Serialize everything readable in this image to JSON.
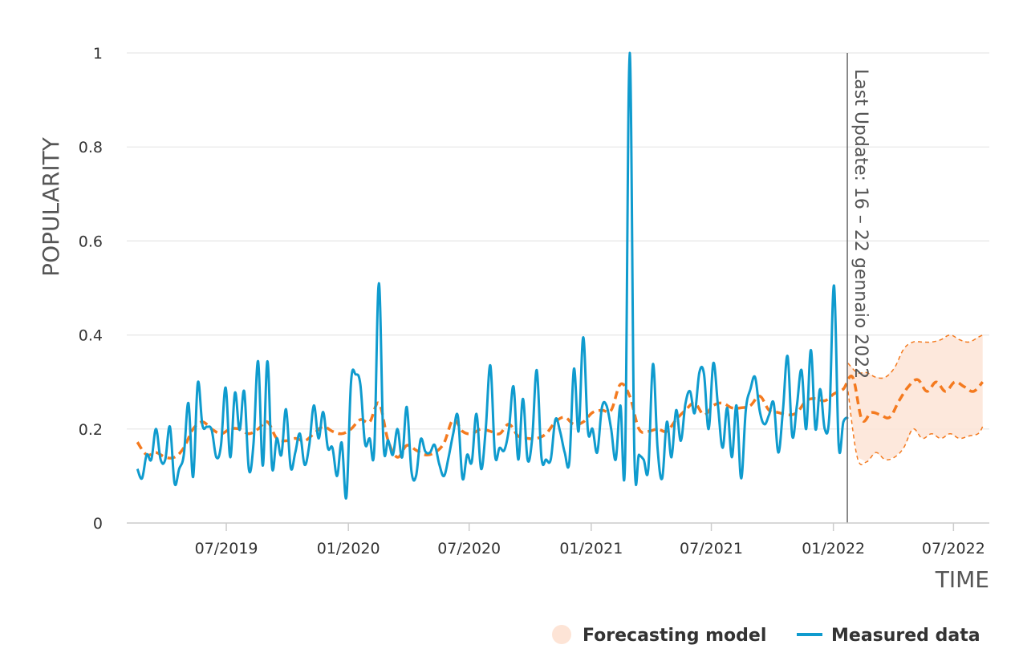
{
  "chart_data": {
    "type": "line",
    "title": "",
    "xlabel": "TIME",
    "ylabel": "POPULARITY",
    "x_type": "date",
    "xlim": [
      "2019-02-01",
      "2022-08-24"
    ],
    "ylim": [
      0,
      1
    ],
    "grid": true,
    "legend_position": "bottom-right",
    "y_ticks": [
      "0",
      "0.2",
      "0.4",
      "0.6",
      "0.8",
      "1"
    ],
    "x_ticks": [
      {
        "date": "2019-07-01",
        "label": "07/2019"
      },
      {
        "date": "2020-01-01",
        "label": "01/2020"
      },
      {
        "date": "2020-07-01",
        "label": "07/2020"
      },
      {
        "date": "2021-01-01",
        "label": "01/2021"
      },
      {
        "date": "2021-07-01",
        "label": "07/2021"
      },
      {
        "date": "2022-01-01",
        "label": "01/2022"
      },
      {
        "date": "2022-07-01",
        "label": "07/2022"
      }
    ],
    "annotation": {
      "date": "2022-01-22",
      "label": "Last Update: 16 – 22 gennaio 2022"
    },
    "series": [
      {
        "name": "Measured data",
        "color": "#0f9bce",
        "points": [
          [
            "2019-02-17",
            0.115
          ],
          [
            "2019-02-24",
            0.095
          ],
          [
            "2019-03-03",
            0.145
          ],
          [
            "2019-03-10",
            0.135
          ],
          [
            "2019-03-17",
            0.2
          ],
          [
            "2019-03-24",
            0.135
          ],
          [
            "2019-03-31",
            0.135
          ],
          [
            "2019-04-07",
            0.205
          ],
          [
            "2019-04-14",
            0.085
          ],
          [
            "2019-04-21",
            0.115
          ],
          [
            "2019-04-28",
            0.145
          ],
          [
            "2019-05-05",
            0.255
          ],
          [
            "2019-05-12",
            0.098
          ],
          [
            "2019-05-19",
            0.298
          ],
          [
            "2019-05-26",
            0.208
          ],
          [
            "2019-06-02",
            0.205
          ],
          [
            "2019-06-09",
            0.198
          ],
          [
            "2019-06-16",
            0.14
          ],
          [
            "2019-06-23",
            0.165
          ],
          [
            "2019-06-30",
            0.288
          ],
          [
            "2019-07-07",
            0.14
          ],
          [
            "2019-07-14",
            0.277
          ],
          [
            "2019-07-21",
            0.198
          ],
          [
            "2019-07-28",
            0.28
          ],
          [
            "2019-08-04",
            0.114
          ],
          [
            "2019-08-11",
            0.168
          ],
          [
            "2019-08-18",
            0.344
          ],
          [
            "2019-08-25",
            0.122
          ],
          [
            "2019-09-01",
            0.344
          ],
          [
            "2019-09-08",
            0.118
          ],
          [
            "2019-09-15",
            0.18
          ],
          [
            "2019-09-22",
            0.145
          ],
          [
            "2019-09-29",
            0.242
          ],
          [
            "2019-10-06",
            0.118
          ],
          [
            "2019-10-13",
            0.15
          ],
          [
            "2019-10-20",
            0.19
          ],
          [
            "2019-10-27",
            0.124
          ],
          [
            "2019-11-03",
            0.165
          ],
          [
            "2019-11-10",
            0.25
          ],
          [
            "2019-11-17",
            0.18
          ],
          [
            "2019-11-24",
            0.236
          ],
          [
            "2019-12-01",
            0.16
          ],
          [
            "2019-12-08",
            0.16
          ],
          [
            "2019-12-15",
            0.1
          ],
          [
            "2019-12-22",
            0.171
          ],
          [
            "2019-12-29",
            0.055
          ],
          [
            "2020-01-05",
            0.3
          ],
          [
            "2020-01-12",
            0.316
          ],
          [
            "2020-01-19",
            0.295
          ],
          [
            "2020-01-26",
            0.17
          ],
          [
            "2020-02-02",
            0.18
          ],
          [
            "2020-02-09",
            0.155
          ],
          [
            "2020-02-16",
            0.51
          ],
          [
            "2020-02-23",
            0.166
          ],
          [
            "2020-03-01",
            0.176
          ],
          [
            "2020-03-08",
            0.145
          ],
          [
            "2020-03-15",
            0.2
          ],
          [
            "2020-03-22",
            0.14
          ],
          [
            "2020-03-29",
            0.247
          ],
          [
            "2020-04-05",
            0.11
          ],
          [
            "2020-04-12",
            0.1
          ],
          [
            "2020-04-19",
            0.178
          ],
          [
            "2020-04-26",
            0.152
          ],
          [
            "2020-05-03",
            0.15
          ],
          [
            "2020-05-10",
            0.166
          ],
          [
            "2020-05-17",
            0.125
          ],
          [
            "2020-05-24",
            0.1
          ],
          [
            "2020-05-31",
            0.14
          ],
          [
            "2020-06-07",
            0.19
          ],
          [
            "2020-06-14",
            0.228
          ],
          [
            "2020-06-21",
            0.095
          ],
          [
            "2020-06-28",
            0.145
          ],
          [
            "2020-07-05",
            0.13
          ],
          [
            "2020-07-12",
            0.232
          ],
          [
            "2020-07-19",
            0.115
          ],
          [
            "2020-07-26",
            0.2
          ],
          [
            "2020-08-02",
            0.335
          ],
          [
            "2020-08-09",
            0.145
          ],
          [
            "2020-08-16",
            0.16
          ],
          [
            "2020-08-23",
            0.155
          ],
          [
            "2020-08-30",
            0.2
          ],
          [
            "2020-09-06",
            0.29
          ],
          [
            "2020-09-13",
            0.135
          ],
          [
            "2020-09-20",
            0.264
          ],
          [
            "2020-09-27",
            0.135
          ],
          [
            "2020-10-04",
            0.18
          ],
          [
            "2020-10-11",
            0.325
          ],
          [
            "2020-10-18",
            0.14
          ],
          [
            "2020-10-25",
            0.135
          ],
          [
            "2020-11-01",
            0.135
          ],
          [
            "2020-11-08",
            0.22
          ],
          [
            "2020-11-15",
            0.195
          ],
          [
            "2020-11-22",
            0.15
          ],
          [
            "2020-11-29",
            0.13
          ],
          [
            "2020-12-06",
            0.328
          ],
          [
            "2020-12-13",
            0.195
          ],
          [
            "2020-12-20",
            0.395
          ],
          [
            "2020-12-27",
            0.197
          ],
          [
            "2021-01-03",
            0.2
          ],
          [
            "2021-01-10",
            0.15
          ],
          [
            "2021-01-17",
            0.245
          ],
          [
            "2021-01-24",
            0.25
          ],
          [
            "2021-01-31",
            0.2
          ],
          [
            "2021-02-07",
            0.135
          ],
          [
            "2021-02-14",
            0.25
          ],
          [
            "2021-02-21",
            0.13
          ],
          [
            "2021-02-28",
            1.0
          ],
          [
            "2021-03-07",
            0.15
          ],
          [
            "2021-03-14",
            0.145
          ],
          [
            "2021-03-21",
            0.135
          ],
          [
            "2021-03-28",
            0.115
          ],
          [
            "2021-04-04",
            0.338
          ],
          [
            "2021-04-11",
            0.16
          ],
          [
            "2021-04-18",
            0.095
          ],
          [
            "2021-04-25",
            0.215
          ],
          [
            "2021-05-02",
            0.14
          ],
          [
            "2021-05-09",
            0.24
          ],
          [
            "2021-05-16",
            0.175
          ],
          [
            "2021-05-23",
            0.254
          ],
          [
            "2021-05-30",
            0.28
          ],
          [
            "2021-06-06",
            0.234
          ],
          [
            "2021-06-13",
            0.32
          ],
          [
            "2021-06-20",
            0.317
          ],
          [
            "2021-06-27",
            0.2
          ],
          [
            "2021-07-04",
            0.34
          ],
          [
            "2021-07-11",
            0.25
          ],
          [
            "2021-07-18",
            0.16
          ],
          [
            "2021-07-25",
            0.245
          ],
          [
            "2021-08-01",
            0.14
          ],
          [
            "2021-08-08",
            0.25
          ],
          [
            "2021-08-15",
            0.095
          ],
          [
            "2021-08-22",
            0.24
          ],
          [
            "2021-08-29",
            0.285
          ],
          [
            "2021-09-05",
            0.31
          ],
          [
            "2021-09-12",
            0.238
          ],
          [
            "2021-09-19",
            0.21
          ],
          [
            "2021-09-26",
            0.23
          ],
          [
            "2021-10-03",
            0.255
          ],
          [
            "2021-10-10",
            0.15
          ],
          [
            "2021-10-17",
            0.24
          ],
          [
            "2021-10-24",
            0.355
          ],
          [
            "2021-10-31",
            0.185
          ],
          [
            "2021-11-07",
            0.25
          ],
          [
            "2021-11-14",
            0.325
          ],
          [
            "2021-11-21",
            0.2
          ],
          [
            "2021-11-28",
            0.368
          ],
          [
            "2021-12-05",
            0.2
          ],
          [
            "2021-12-12",
            0.285
          ],
          [
            "2021-12-19",
            0.2
          ],
          [
            "2021-12-26",
            0.23
          ],
          [
            "2022-01-02",
            0.505
          ],
          [
            "2022-01-09",
            0.165
          ],
          [
            "2022-01-16",
            0.215
          ],
          [
            "2022-01-23",
            0.225
          ]
        ]
      },
      {
        "name": "Forecasting model",
        "color": "#f47a1f",
        "band_color": "#fde4d6",
        "points": [
          [
            "2019-02-17",
            0.172
          ],
          [
            "2019-03-03",
            0.145
          ],
          [
            "2019-03-17",
            0.15
          ],
          [
            "2019-03-31",
            0.14
          ],
          [
            "2019-04-14",
            0.14
          ],
          [
            "2019-04-28",
            0.16
          ],
          [
            "2019-05-12",
            0.2
          ],
          [
            "2019-05-26",
            0.215
          ],
          [
            "2019-06-09",
            0.2
          ],
          [
            "2019-06-23",
            0.19
          ],
          [
            "2019-07-07",
            0.2
          ],
          [
            "2019-07-21",
            0.2
          ],
          [
            "2019-08-04",
            0.19
          ],
          [
            "2019-08-18",
            0.2
          ],
          [
            "2019-09-01",
            0.215
          ],
          [
            "2019-09-15",
            0.18
          ],
          [
            "2019-09-29",
            0.175
          ],
          [
            "2019-10-13",
            0.18
          ],
          [
            "2019-10-27",
            0.175
          ],
          [
            "2019-11-10",
            0.19
          ],
          [
            "2019-11-24",
            0.205
          ],
          [
            "2019-12-08",
            0.195
          ],
          [
            "2019-12-22",
            0.19
          ],
          [
            "2020-01-05",
            0.2
          ],
          [
            "2020-01-19",
            0.22
          ],
          [
            "2020-02-02",
            0.215
          ],
          [
            "2020-02-16",
            0.255
          ],
          [
            "2020-03-01",
            0.175
          ],
          [
            "2020-03-15",
            0.14
          ],
          [
            "2020-03-29",
            0.165
          ],
          [
            "2020-04-12",
            0.155
          ],
          [
            "2020-04-26",
            0.145
          ],
          [
            "2020-05-10",
            0.15
          ],
          [
            "2020-05-24",
            0.17
          ],
          [
            "2020-06-07",
            0.22
          ],
          [
            "2020-06-21",
            0.195
          ],
          [
            "2020-07-05",
            0.19
          ],
          [
            "2020-07-19",
            0.2
          ],
          [
            "2020-08-02",
            0.195
          ],
          [
            "2020-08-16",
            0.19
          ],
          [
            "2020-08-30",
            0.21
          ],
          [
            "2020-09-13",
            0.185
          ],
          [
            "2020-09-27",
            0.18
          ],
          [
            "2020-10-11",
            0.18
          ],
          [
            "2020-10-25",
            0.19
          ],
          [
            "2020-11-08",
            0.215
          ],
          [
            "2020-11-22",
            0.225
          ],
          [
            "2020-12-06",
            0.21
          ],
          [
            "2020-12-20",
            0.215
          ],
          [
            "2021-01-03",
            0.235
          ],
          [
            "2021-01-17",
            0.24
          ],
          [
            "2021-01-31",
            0.24
          ],
          [
            "2021-02-14",
            0.295
          ],
          [
            "2021-02-28",
            0.27
          ],
          [
            "2021-03-14",
            0.2
          ],
          [
            "2021-03-28",
            0.195
          ],
          [
            "2021-04-11",
            0.2
          ],
          [
            "2021-04-25",
            0.195
          ],
          [
            "2021-05-09",
            0.22
          ],
          [
            "2021-05-23",
            0.24
          ],
          [
            "2021-06-06",
            0.255
          ],
          [
            "2021-06-20",
            0.23
          ],
          [
            "2021-07-04",
            0.25
          ],
          [
            "2021-07-18",
            0.255
          ],
          [
            "2021-08-01",
            0.245
          ],
          [
            "2021-08-15",
            0.245
          ],
          [
            "2021-08-29",
            0.25
          ],
          [
            "2021-09-12",
            0.27
          ],
          [
            "2021-09-26",
            0.24
          ],
          [
            "2021-10-10",
            0.235
          ],
          [
            "2021-10-24",
            0.23
          ],
          [
            "2021-11-07",
            0.235
          ],
          [
            "2021-11-21",
            0.26
          ],
          [
            "2021-12-05",
            0.265
          ],
          [
            "2021-12-19",
            0.26
          ],
          [
            "2022-01-02",
            0.275
          ],
          [
            "2022-01-16",
            0.285
          ],
          [
            "2022-01-30",
            0.31
          ],
          [
            "2022-02-13",
            0.22
          ],
          [
            "2022-02-27",
            0.235
          ],
          [
            "2022-03-13",
            0.23
          ],
          [
            "2022-03-27",
            0.225
          ],
          [
            "2022-04-10",
            0.26
          ],
          [
            "2022-04-24",
            0.29
          ],
          [
            "2022-05-08",
            0.305
          ],
          [
            "2022-05-22",
            0.28
          ],
          [
            "2022-06-05",
            0.3
          ],
          [
            "2022-06-19",
            0.28
          ],
          [
            "2022-07-03",
            0.3
          ],
          [
            "2022-07-17",
            0.29
          ],
          [
            "2022-07-31",
            0.28
          ],
          [
            "2022-08-14",
            0.3
          ]
        ],
        "band": [
          [
            "2022-01-23",
            0.34,
            0.28
          ],
          [
            "2022-02-06",
            0.32,
            0.14
          ],
          [
            "2022-02-20",
            0.32,
            0.13
          ],
          [
            "2022-03-06",
            0.31,
            0.15
          ],
          [
            "2022-03-20",
            0.31,
            0.135
          ],
          [
            "2022-04-03",
            0.33,
            0.14
          ],
          [
            "2022-04-17",
            0.37,
            0.16
          ],
          [
            "2022-05-01",
            0.385,
            0.2
          ],
          [
            "2022-05-15",
            0.385,
            0.18
          ],
          [
            "2022-05-29",
            0.385,
            0.19
          ],
          [
            "2022-06-12",
            0.39,
            0.18
          ],
          [
            "2022-06-26",
            0.4,
            0.19
          ],
          [
            "2022-07-10",
            0.39,
            0.18
          ],
          [
            "2022-07-24",
            0.385,
            0.185
          ],
          [
            "2022-08-07",
            0.395,
            0.19
          ],
          [
            "2022-08-14",
            0.4,
            0.205
          ]
        ]
      }
    ]
  }
}
